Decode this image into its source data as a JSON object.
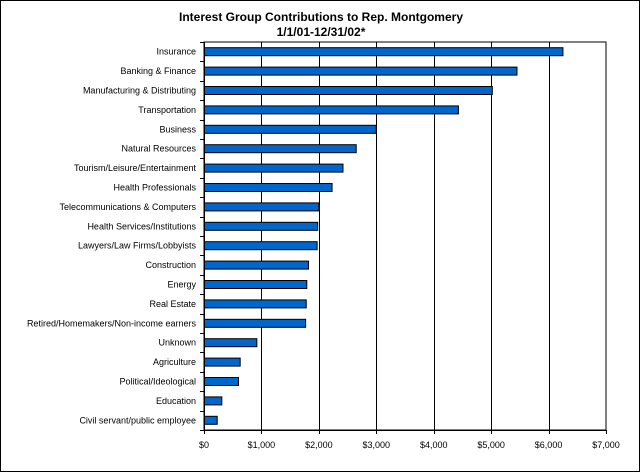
{
  "chart_data": {
    "type": "bar",
    "orientation": "horizontal",
    "title": "Interest Group Contributions to Rep. Montgomery",
    "subtitle": "1/1/01-12/31/02*",
    "categories": [
      "Insurance",
      "Banking & Finance",
      "Manufacturing & Distributing",
      "Transportation",
      "Business",
      "Natural Resources",
      "Tourism/Leisure/Entertainment",
      "Health Professionals",
      "Telecommunications & Computers",
      "Health Services/Institutions",
      "Lawyers/Law Firms/Lobbyists",
      "Construction",
      "Energy",
      "Real Estate",
      "Retired/Homemakers/Non-income earners",
      "Unknown",
      "Agriculture",
      "Political/Ideological",
      "Education",
      "Civil servant/public employee"
    ],
    "values": [
      6250,
      5450,
      5020,
      4430,
      3000,
      2650,
      2420,
      2230,
      2000,
      1980,
      1970,
      1820,
      1790,
      1780,
      1770,
      920,
      630,
      600,
      310,
      230
    ],
    "xlim": [
      0,
      7000
    ],
    "x_ticks": [
      0,
      1000,
      2000,
      3000,
      4000,
      5000,
      6000,
      7000
    ],
    "x_tick_labels": [
      "$0",
      "$1,000",
      "$2,000",
      "$3,000",
      "$4,000",
      "$5,000",
      "$6,000",
      "$7,000"
    ],
    "grid": "vertical",
    "bar_color": "#0066cc",
    "bar_outline": "#000000"
  }
}
